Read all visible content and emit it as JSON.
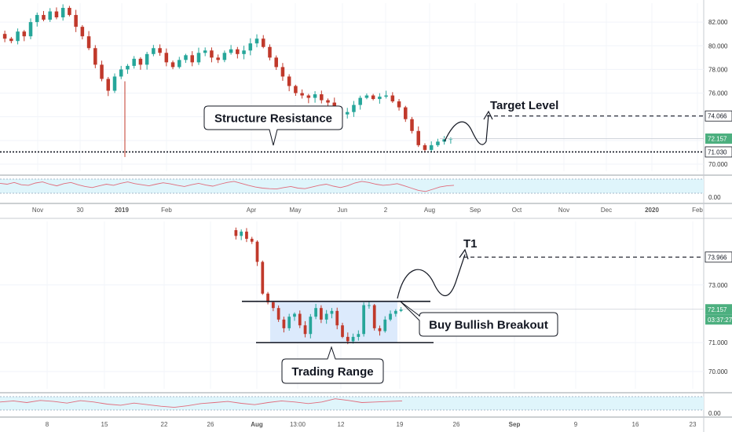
{
  "chart_data": [
    {
      "type": "candlestick",
      "panel": "top",
      "y_ticks": [
        "82.000",
        "80.000",
        "78.000",
        "76.000",
        "74.000",
        "72.000",
        "70.000"
      ],
      "ylim": [
        69.4,
        83.6
      ],
      "x_ticks": [
        "Nov",
        "30",
        "2019",
        "Feb",
        "Apr",
        "May",
        "Jun",
        "2",
        "Aug",
        "Sep",
        "Oct",
        "Nov",
        "Dec",
        "2020",
        "Feb"
      ],
      "price_tags": {
        "target": "74.066",
        "current": "72.157",
        "support": "71.030"
      },
      "levels": {
        "target": 74.066,
        "current": 72.157,
        "support": 71.03
      },
      "annotations": {
        "resistance_label": "Structure Resistance",
        "target_label": "Target Level"
      },
      "close_path": [
        81.0,
        80.6,
        80.4,
        81.2,
        80.8,
        82.0,
        82.6,
        82.2,
        82.9,
        82.4,
        83.2,
        82.6,
        81.6,
        80.8,
        79.8,
        78.4,
        77.2,
        76.2,
        77.4,
        78.0,
        78.3,
        78.9,
        78.4,
        79.3,
        79.8,
        79.4,
        78.6,
        78.2,
        78.8,
        79.2,
        78.6,
        79.4,
        79.6,
        79.0,
        78.8,
        79.4,
        79.7,
        79.3,
        79.6,
        80.2,
        80.6,
        79.9,
        79.0,
        78.2,
        77.4,
        76.6,
        76.0,
        75.8,
        75.6,
        75.9,
        75.4,
        75.2,
        74.6,
        74.2,
        74.4,
        75.0,
        75.6,
        75.8,
        75.5,
        75.7,
        75.8,
        75.3,
        74.8,
        73.8,
        72.8,
        71.6,
        71.2,
        71.6,
        71.9,
        72.1,
        72.157
      ],
      "rsi_path": [
        55,
        52,
        58,
        50,
        48,
        56,
        60,
        52,
        46,
        54,
        58,
        50,
        44,
        40,
        46,
        52,
        48,
        55,
        60,
        54,
        50,
        46,
        52,
        57,
        53,
        48,
        44,
        50,
        55,
        49,
        45,
        52,
        58,
        62,
        55,
        48,
        42,
        38,
        36,
        35,
        40,
        44,
        38,
        36,
        42,
        48,
        52,
        45,
        40,
        46,
        56,
        62,
        58,
        52,
        48,
        50,
        54,
        46,
        38,
        30,
        26,
        34,
        42,
        46,
        48
      ],
      "rsi_ticks": [
        "0.00"
      ]
    },
    {
      "type": "candlestick",
      "panel": "bottom",
      "y_ticks": [
        "73.000",
        "71.000",
        "70.000"
      ],
      "ylim": [
        69.4,
        75.2
      ],
      "x_ticks": [
        "8",
        "15",
        "22",
        "26",
        "Aug",
        "13:00",
        "12",
        "19",
        "26",
        "Sep",
        "9",
        "16",
        "23"
      ],
      "price_tags": {
        "target": "73.966",
        "current": "72.157",
        "countdown": "03:37:27"
      },
      "levels": {
        "t1": 73.966,
        "range_top": 72.43,
        "range_bottom": 71.0
      },
      "annotations": {
        "t1_label": "T1",
        "breakout_label": "Buy Bullish Breakout",
        "range_label": "Trading Range"
      },
      "close_path": [
        74.9,
        74.7,
        74.85,
        74.6,
        74.5,
        73.8,
        72.7,
        72.4,
        72.2,
        71.8,
        71.5,
        71.9,
        72.0,
        71.6,
        71.3,
        71.9,
        72.2,
        71.8,
        72.0,
        72.1,
        71.6,
        71.2,
        71.05,
        71.2,
        71.3,
        72.3,
        72.3,
        71.5,
        71.4,
        71.8,
        72.0,
        72.1,
        72.157
      ],
      "rsi_path": [
        50,
        54,
        48,
        56,
        52,
        46,
        55,
        50,
        42,
        38,
        46,
        40,
        34,
        30,
        36,
        44,
        48,
        52,
        45,
        40,
        48,
        54,
        50,
        44,
        50,
        62,
        56,
        48,
        50,
        52,
        54
      ],
      "rsi_ticks": [
        "0.00"
      ]
    }
  ],
  "colors": {
    "up": "#26a69a",
    "down": "#c0392b",
    "range_fill": "#d6e6fb",
    "rsi_band": "#dff5fb",
    "rsi_line": "#e06b7b",
    "current_tag": "#4caf7f"
  }
}
